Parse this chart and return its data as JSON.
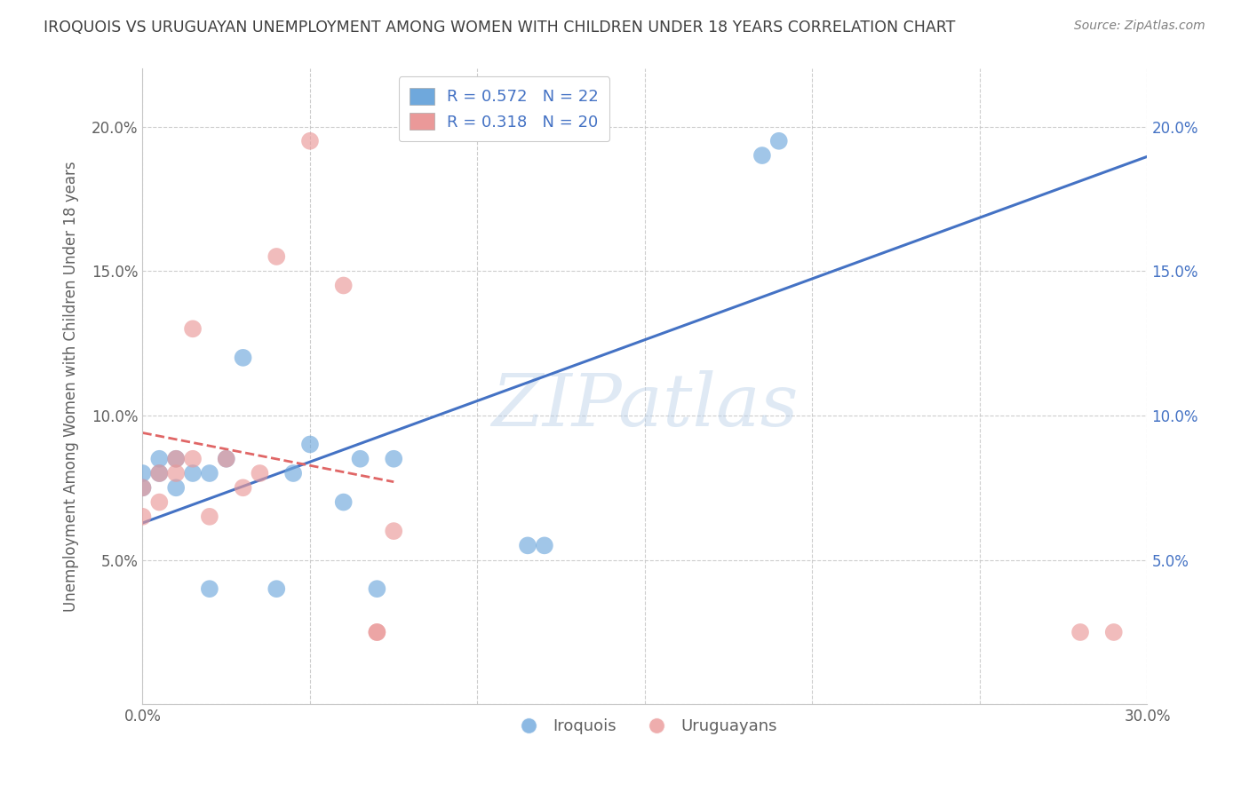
{
  "title": "IROQUOIS VS URUGUAYAN UNEMPLOYMENT AMONG WOMEN WITH CHILDREN UNDER 18 YEARS CORRELATION CHART",
  "source": "Source: ZipAtlas.com",
  "ylabel": "Unemployment Among Women with Children Under 18 years",
  "xlim": [
    0.0,
    0.3
  ],
  "ylim": [
    0.0,
    0.22
  ],
  "xticks": [
    0.0,
    0.05,
    0.1,
    0.15,
    0.2,
    0.25,
    0.3
  ],
  "yticks": [
    0.0,
    0.05,
    0.1,
    0.15,
    0.2
  ],
  "xtick_labels_left": [
    "0.0%",
    "",
    "",
    "",
    "",
    "",
    "30.0%"
  ],
  "ytick_labels_left": [
    "",
    "5.0%",
    "10.0%",
    "15.0%",
    "20.0%"
  ],
  "ytick_labels_right": [
    "",
    "5.0%",
    "10.0%",
    "15.0%",
    "20.0%"
  ],
  "legend_blue_r": "0.572",
  "legend_blue_n": "22",
  "legend_pink_r": "0.318",
  "legend_pink_n": "20",
  "iroquois_x": [
    0.0,
    0.0,
    0.005,
    0.005,
    0.01,
    0.01,
    0.015,
    0.02,
    0.02,
    0.025,
    0.03,
    0.04,
    0.045,
    0.05,
    0.06,
    0.065,
    0.07,
    0.075,
    0.115,
    0.12,
    0.185,
    0.19
  ],
  "iroquois_y": [
    0.075,
    0.08,
    0.08,
    0.085,
    0.075,
    0.085,
    0.08,
    0.04,
    0.08,
    0.085,
    0.12,
    0.04,
    0.08,
    0.09,
    0.07,
    0.085,
    0.04,
    0.085,
    0.055,
    0.055,
    0.19,
    0.195
  ],
  "uruguayan_x": [
    0.0,
    0.0,
    0.005,
    0.005,
    0.01,
    0.01,
    0.015,
    0.015,
    0.02,
    0.025,
    0.03,
    0.035,
    0.04,
    0.05,
    0.06,
    0.07,
    0.07,
    0.075,
    0.28,
    0.29
  ],
  "uruguayan_y": [
    0.065,
    0.075,
    0.07,
    0.08,
    0.08,
    0.085,
    0.085,
    0.13,
    0.065,
    0.085,
    0.075,
    0.08,
    0.155,
    0.195,
    0.145,
    0.025,
    0.025,
    0.06,
    0.025,
    0.025
  ],
  "blue_color": "#6fa8dc",
  "pink_color": "#ea9999",
  "blue_line_color": "#4472c4",
  "pink_line_color": "#e06666",
  "watermark_text": "ZIPatlas",
  "background_color": "#ffffff",
  "grid_color": "#c8c8c8",
  "title_color": "#404040",
  "source_color": "#808080",
  "axis_label_color": "#606060",
  "tick_color": "#606060"
}
